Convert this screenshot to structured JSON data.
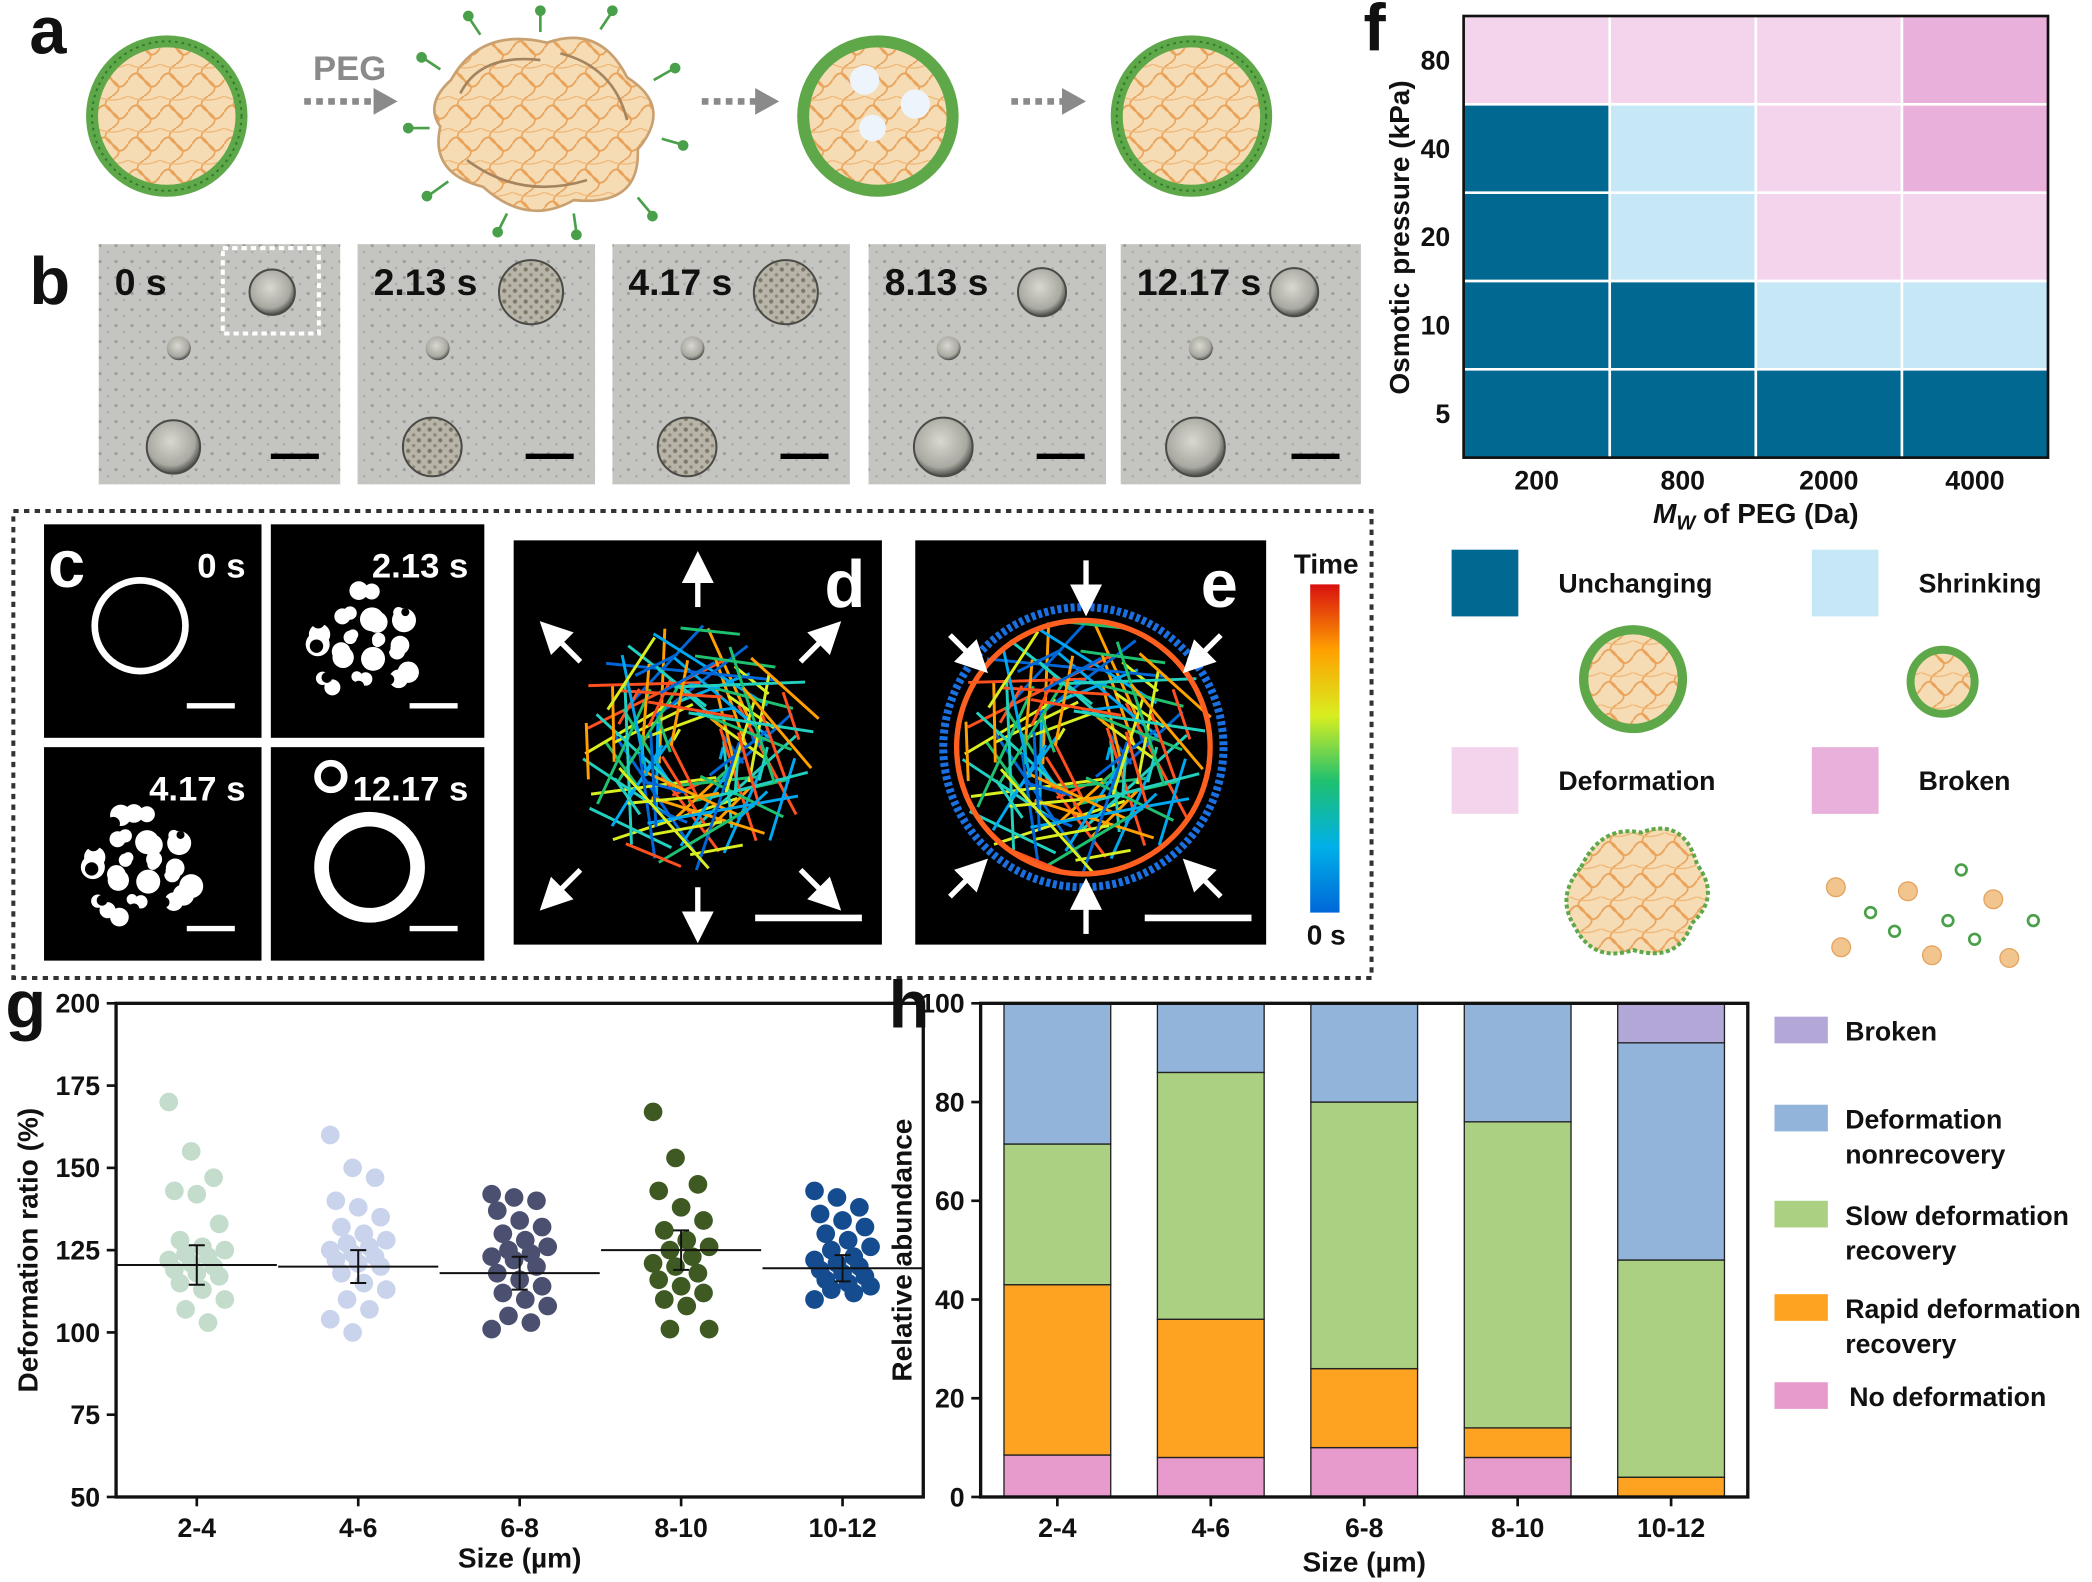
{
  "panel_labels": {
    "a": "a",
    "b": "b",
    "c": "c",
    "d": "d",
    "e": "e",
    "f": "f",
    "g": "g",
    "h": "h"
  },
  "panel_a": {
    "arrow_label": "PEG"
  },
  "panel_b": {
    "times": [
      "0 s",
      "2.13 s",
      "4.17 s",
      "8.13 s",
      "12.17 s"
    ]
  },
  "panel_c": {
    "times": [
      "0 s",
      "2.13 s",
      "4.17 s",
      "12.17 s"
    ]
  },
  "colorbar": {
    "top_label": "Time",
    "bottom_label": "0 s"
  },
  "colors": {
    "unchanging": "#006891",
    "shrinking": "#c6e7f5",
    "deformation": "#f4d4ec",
    "broken": "#e8b0da",
    "g_series": [
      "#c3dccb",
      "#c9d4ec",
      "#4c5070",
      "#3e5a22",
      "#154c8f"
    ],
    "h_broken": "#b3a7d8",
    "h_nonrecovery": "#93b4da",
    "h_slow": "#abd081",
    "h_rapid": "#fea321",
    "h_none": "#e79bcc"
  },
  "chart_data": [
    {
      "panel": "f",
      "type": "heatmap",
      "xlabel": "M_W of PEG (Da)",
      "xlabel_main": "M",
      "xlabel_sub": "W",
      "xlabel_rest": " of PEG (Da)",
      "ylabel": "Osmotic pressure (kPa)",
      "x_categories": [
        "200",
        "800",
        "2000",
        "4000"
      ],
      "y_categories": [
        "80",
        "40",
        "20",
        "10",
        "5"
      ],
      "cells": [
        [
          "Deformation",
          "Deformation",
          "Deformation",
          "Broken"
        ],
        [
          "Unchanging",
          "Shrinking",
          "Deformation",
          "Broken"
        ],
        [
          "Unchanging",
          "Shrinking",
          "Deformation",
          "Deformation"
        ],
        [
          "Unchanging",
          "Unchanging",
          "Shrinking",
          "Shrinking"
        ],
        [
          "Unchanging",
          "Unchanging",
          "Unchanging",
          "Unchanging"
        ]
      ],
      "legend": [
        "Unchanging",
        "Shrinking",
        "Deformation",
        "Broken"
      ]
    },
    {
      "panel": "g",
      "type": "scatter",
      "xlabel": "Size (µm)",
      "ylabel": "Deformation ratio (%)",
      "categories": [
        "2-4",
        "4-6",
        "6-8",
        "8-10",
        "10-12"
      ],
      "ylim": [
        50,
        200
      ],
      "yticks": [
        "50",
        "75",
        "100",
        "125",
        "150",
        "175",
        "200"
      ],
      "series": [
        {
          "values": [
            170,
            155,
            147,
            143,
            142,
            133,
            128,
            126,
            125,
            124,
            123,
            122,
            121,
            120,
            119,
            118,
            117,
            115,
            113,
            110,
            107,
            103
          ],
          "mean": 120.5,
          "err": 6
        },
        {
          "values": [
            160,
            150,
            147,
            140,
            138,
            135,
            132,
            130,
            128,
            127,
            126,
            125,
            124,
            123,
            122,
            121,
            120,
            118,
            115,
            113,
            110,
            107,
            104,
            100
          ],
          "mean": 120,
          "err": 5
        },
        {
          "values": [
            142,
            141,
            140,
            137,
            134,
            132,
            130,
            128,
            126,
            125,
            124,
            123,
            122,
            120,
            118,
            116,
            114,
            112,
            110,
            108,
            105,
            103,
            101
          ],
          "mean": 118,
          "err": 5
        },
        {
          "values": [
            167,
            153,
            145,
            143,
            138,
            134,
            131,
            128,
            126,
            125,
            123,
            121,
            120,
            118,
            116,
            114,
            112,
            110,
            108,
            101,
            101
          ],
          "mean": 125,
          "err": 6
        },
        {
          "values": [
            143,
            141,
            138,
            136,
            134,
            132,
            130,
            128,
            126,
            125,
            123,
            122,
            121,
            120,
            119,
            118,
            117,
            116,
            115,
            114,
            113,
            112,
            110
          ],
          "mean": 119.5,
          "err": 4
        }
      ]
    },
    {
      "panel": "h",
      "type": "bar",
      "stacked": true,
      "xlabel": "Size (µm)",
      "ylabel": "Relative abundance",
      "categories": [
        "2-4",
        "4-6",
        "6-8",
        "8-10",
        "10-12"
      ],
      "ylim": [
        0,
        100
      ],
      "yticks": [
        "0",
        "20",
        "40",
        "60",
        "80",
        "100"
      ],
      "series": [
        {
          "name": "No deformation",
          "values": [
            8.5,
            8,
            10,
            8,
            0
          ]
        },
        {
          "name": "Rapid deformation recovery",
          "values": [
            34.5,
            28,
            16,
            6,
            4
          ]
        },
        {
          "name": "Slow deformation recovery",
          "values": [
            28.5,
            50,
            54,
            62,
            44
          ]
        },
        {
          "name": "Deformation nonrecovery",
          "values": [
            28.5,
            14,
            20,
            24,
            44
          ]
        },
        {
          "name": "Broken",
          "values": [
            0,
            0,
            0,
            0,
            8
          ]
        }
      ],
      "legend": [
        {
          "key": "h_broken",
          "lines": [
            "Broken"
          ]
        },
        {
          "key": "h_nonrecovery",
          "lines": [
            "Deformation",
            "nonrecovery"
          ]
        },
        {
          "key": "h_slow",
          "lines": [
            "Slow deformation",
            "recovery"
          ]
        },
        {
          "key": "h_rapid",
          "lines": [
            "Rapid deformation",
            "recovery"
          ]
        },
        {
          "key": "h_none",
          "lines": [
            "No deformation"
          ]
        }
      ]
    }
  ]
}
